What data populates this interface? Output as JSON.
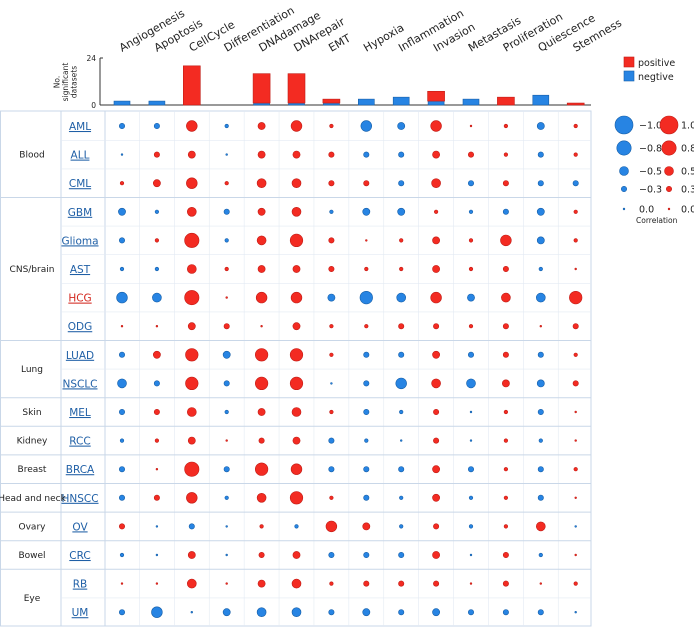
{
  "colors": {
    "positive": "#f32b22",
    "negative": "#2784e3",
    "positive_edge": "#c21d16",
    "negative_edge": "#165fa8",
    "grid": "#c9d7e8",
    "link": "#1f5fa6",
    "link_highlight": "#d3281f"
  },
  "chart_data": {
    "type": "dot-matrix with stacked bar summary",
    "columns": [
      "Angiogenesis",
      "Apoptosis",
      "CellCycle",
      "Differentiation",
      "DNAdamage",
      "DNArepair",
      "EMT",
      "Hypoxia",
      "Inflammation",
      "Invasion",
      "Metastasis",
      "Proliferation",
      "Quiescence",
      "Stemness"
    ],
    "bar_axis": {
      "label_lines": [
        "No.",
        "significant",
        "datasets"
      ],
      "ylim": [
        0,
        24
      ],
      "ticks": [
        0,
        24
      ]
    },
    "bars": {
      "positive": [
        0,
        0,
        20,
        0,
        15,
        15,
        2,
        0,
        0,
        5,
        0,
        4,
        0,
        1
      ],
      "negative": [
        2,
        2,
        0,
        0,
        1,
        1,
        1,
        3,
        4,
        2,
        3,
        0,
        5,
        0
      ]
    },
    "legend": {
      "bar": [
        "positive",
        "negtive"
      ],
      "size_scale": {
        "negative": [
          -1.0,
          -0.8,
          -0.5,
          -0.3,
          0.0
        ],
        "positive": [
          1.0,
          0.8,
          0.5,
          0.3,
          0.0
        ],
        "labels_neg": [
          "−1.0",
          "−0.8",
          "−0.5",
          "−0.3",
          "0.0"
        ],
        "labels_pos": [
          "1.0",
          "0.8",
          "0.5",
          "0.3",
          "0.0"
        ]
      },
      "title": "Correlation"
    },
    "groups": [
      {
        "name": "Blood",
        "rows": [
          "AML",
          "ALL",
          "CML"
        ]
      },
      {
        "name": "CNS/brain",
        "rows": [
          "GBM",
          "Glioma",
          "AST",
          "HCG",
          "ODG"
        ]
      },
      {
        "name": "Lung",
        "rows": [
          "LUAD",
          "NSCLC"
        ]
      },
      {
        "name": "Skin",
        "rows": [
          "MEL"
        ]
      },
      {
        "name": "Kidney",
        "rows": [
          "RCC"
        ]
      },
      {
        "name": "Breast",
        "rows": [
          "BRCA"
        ]
      },
      {
        "name": "Head and neck",
        "rows": [
          "HNSCC"
        ]
      },
      {
        "name": "Ovary",
        "rows": [
          "OV"
        ]
      },
      {
        "name": "Bowel",
        "rows": [
          "CRC"
        ]
      },
      {
        "name": "Eye",
        "rows": [
          "RB",
          "UM"
        ]
      }
    ],
    "highlight_row": "HCG",
    "values": {
      "AML": [
        -0.3,
        -0.3,
        0.6,
        -0.2,
        0.4,
        0.6,
        0.2,
        -0.6,
        -0.4,
        0.6,
        0.1,
        0.2,
        -0.4,
        0.2
      ],
      "ALL": [
        -0.1,
        0.3,
        0.4,
        -0.1,
        0.4,
        0.4,
        0.3,
        -0.3,
        -0.3,
        0.4,
        0.3,
        0.2,
        -0.3,
        0.2
      ],
      "CML": [
        0.2,
        0.4,
        0.6,
        0.2,
        0.5,
        0.5,
        0.3,
        0.3,
        -0.3,
        0.5,
        -0.3,
        0.3,
        -0.3,
        -0.3
      ],
      "GBM": [
        -0.4,
        -0.2,
        0.5,
        -0.3,
        0.4,
        0.5,
        -0.2,
        -0.4,
        -0.4,
        0.2,
        -0.2,
        -0.3,
        -0.4,
        0.2
      ],
      "Glioma": [
        -0.3,
        0.2,
        0.8,
        -0.2,
        0.5,
        0.7,
        0.3,
        0.1,
        0.2,
        0.4,
        0.2,
        0.6,
        -0.4,
        0.2
      ],
      "AST": [
        -0.2,
        -0.2,
        0.5,
        0.2,
        0.4,
        0.4,
        0.3,
        0.2,
        0.2,
        0.4,
        0.2,
        0.3,
        -0.2,
        0.1
      ],
      "HCG": [
        -0.6,
        -0.5,
        0.8,
        0.1,
        0.6,
        0.6,
        -0.4,
        -0.7,
        -0.5,
        0.6,
        -0.4,
        0.5,
        -0.5,
        0.7
      ],
      "ODG": [
        0.1,
        0.1,
        0.4,
        0.3,
        0.1,
        0.4,
        0.2,
        0.2,
        0.3,
        0.3,
        0.2,
        0.3,
        0.1,
        0.3
      ],
      "LUAD": [
        -0.3,
        0.4,
        0.7,
        -0.4,
        0.7,
        0.7,
        0.2,
        -0.3,
        -0.3,
        0.4,
        -0.3,
        0.3,
        -0.3,
        0.2
      ],
      "NSCLC": [
        -0.5,
        -0.3,
        0.7,
        -0.3,
        0.7,
        0.7,
        -0.1,
        -0.3,
        -0.6,
        0.5,
        -0.5,
        0.4,
        -0.4,
        0.3
      ],
      "MEL": [
        -0.3,
        0.3,
        0.5,
        -0.2,
        0.4,
        0.5,
        0.2,
        -0.3,
        -0.2,
        0.3,
        -0.1,
        0.2,
        -0.3,
        0.1
      ],
      "RCC": [
        -0.2,
        0.2,
        0.4,
        0.1,
        0.3,
        0.4,
        -0.3,
        -0.2,
        -0.1,
        0.3,
        -0.1,
        0.2,
        -0.2,
        0.1
      ],
      "BRCA": [
        -0.3,
        0.1,
        0.8,
        -0.3,
        0.7,
        0.6,
        -0.3,
        -0.3,
        -0.3,
        0.4,
        -0.3,
        0.2,
        -0.3,
        0.2
      ],
      "HNSCC": [
        -0.3,
        0.3,
        0.6,
        -0.2,
        0.5,
        0.7,
        0.2,
        -0.3,
        -0.2,
        0.4,
        -0.2,
        0.2,
        -0.3,
        0.1
      ],
      "OV": [
        0.3,
        -0.1,
        -0.3,
        -0.1,
        0.2,
        -0.2,
        0.6,
        0.4,
        -0.2,
        0.3,
        -0.2,
        0.2,
        0.5,
        -0.1
      ],
      "CRC": [
        -0.2,
        -0.1,
        0.4,
        -0.1,
        0.3,
        0.4,
        -0.3,
        -0.3,
        -0.3,
        0.4,
        -0.1,
        0.3,
        -0.2,
        0.1
      ],
      "RB": [
        0.1,
        0.1,
        0.5,
        0.1,
        0.4,
        0.5,
        0.2,
        0.3,
        0.3,
        0.3,
        0.1,
        0.3,
        0.1,
        0.2
      ],
      "UM": [
        -0.3,
        -0.6,
        -0.1,
        -0.4,
        -0.5,
        -0.5,
        -0.3,
        -0.4,
        -0.3,
        -0.4,
        -0.3,
        -0.3,
        -0.3,
        -0.1
      ]
    }
  }
}
